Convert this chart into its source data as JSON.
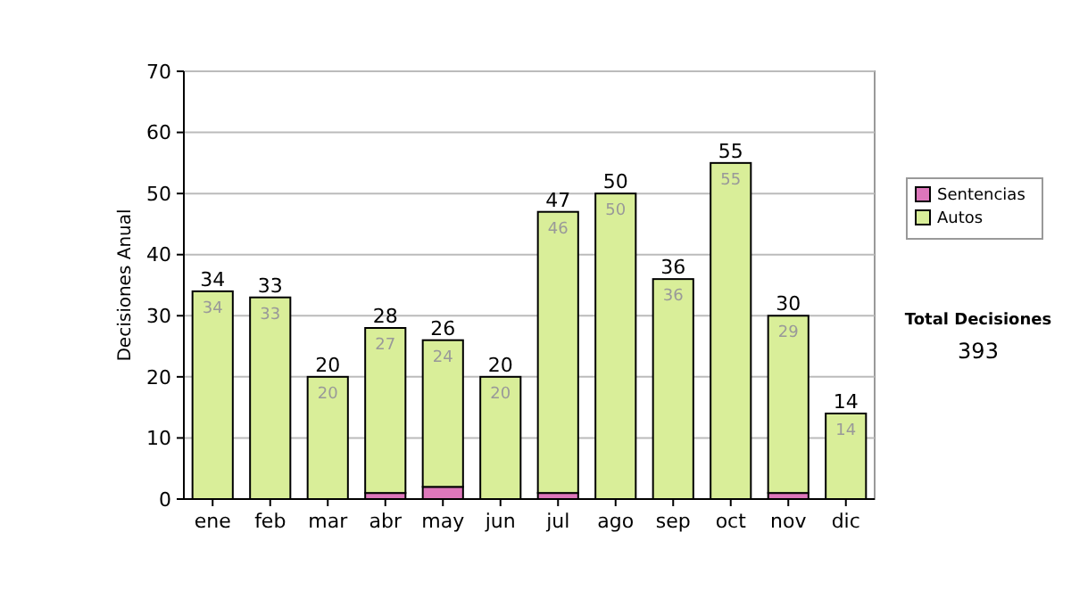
{
  "chart_data": {
    "type": "bar",
    "stacked": true,
    "ylabel": "Decisiones Anual",
    "categories": [
      "ene",
      "feb",
      "mar",
      "abr",
      "may",
      "jun",
      "jul",
      "ago",
      "sep",
      "oct",
      "nov",
      "dic"
    ],
    "series": [
      {
        "name": "Sentencias",
        "color": "#dd77bb",
        "values": [
          0,
          0,
          0,
          1,
          2,
          0,
          1,
          0,
          0,
          0,
          1,
          0
        ]
      },
      {
        "name": "Autos",
        "color": "#d9ee99",
        "values": [
          34,
          33,
          20,
          27,
          24,
          20,
          46,
          50,
          36,
          55,
          29,
          14
        ],
        "value_labels": [
          "34",
          "33",
          "20",
          "27",
          "24",
          "20",
          "46",
          "50",
          "36",
          "55",
          "29",
          "14"
        ]
      }
    ],
    "totals": [
      "34",
      "33",
      "20",
      "28",
      "26",
      "20",
      "47",
      "50",
      "36",
      "55",
      "30",
      "14"
    ],
    "ylim": [
      0,
      70
    ],
    "yticks": [
      0,
      10,
      20,
      30,
      40,
      50,
      60,
      70
    ],
    "grid": "y",
    "legend": "right",
    "annotations": [
      "Total Decisiones",
      "393"
    ]
  }
}
